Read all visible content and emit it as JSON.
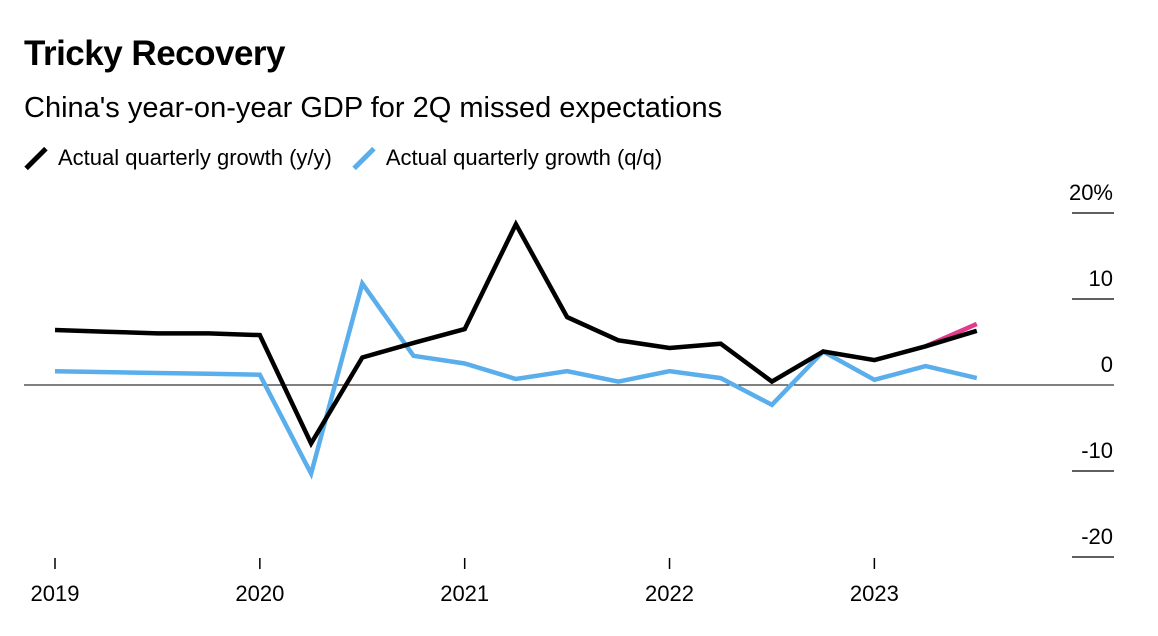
{
  "header": {
    "title": "Tricky Recovery",
    "subtitle": "China's year-on-year GDP for 2Q missed expectations"
  },
  "legend": [
    {
      "label": "Actual quarterly growth (y/y)",
      "color": "#000000"
    },
    {
      "label": "Actual quarterly growth (q/q)",
      "color": "#5aaeeb"
    }
  ],
  "colors": {
    "yy": "#000000",
    "qq": "#5aaeeb",
    "expectation": "#e23a8c"
  },
  "chart_data": {
    "type": "line",
    "x_axis_ticks": [
      {
        "label": "2019",
        "x": 2019.0
      },
      {
        "label": "2020",
        "x": 2020.0
      },
      {
        "label": "2021",
        "x": 2021.0
      },
      {
        "label": "2022",
        "x": 2022.0
      },
      {
        "label": "2023",
        "x": 2023.0
      }
    ],
    "y_axis_ticks": [
      {
        "label": "20%",
        "value": 20
      },
      {
        "label": "10",
        "value": 10
      },
      {
        "label": "0",
        "value": 0
      },
      {
        "label": "-10",
        "value": -10
      },
      {
        "label": "-20",
        "value": -20
      }
    ],
    "ylim": [
      -20,
      20
    ],
    "xlim": [
      2019.0,
      2023.75
    ],
    "series": [
      {
        "name": "Actual quarterly growth (y/y)",
        "key": "yy",
        "x": [
          2019.0,
          2019.25,
          2019.5,
          2019.75,
          2020.0,
          2020.25,
          2020.5,
          2020.75,
          2021.0,
          2021.25,
          2021.5,
          2021.75,
          2022.0,
          2022.25,
          2022.5,
          2022.75,
          2023.0,
          2023.25,
          2023.5
        ],
        "y": [
          6.4,
          6.2,
          6.0,
          6.0,
          5.8,
          -6.8,
          3.2,
          4.9,
          6.5,
          18.7,
          7.9,
          5.2,
          4.3,
          4.8,
          0.4,
          3.9,
          2.9,
          4.5,
          6.3
        ]
      },
      {
        "name": "Actual quarterly growth (q/q)",
        "key": "qq",
        "x": [
          2019.0,
          2019.25,
          2019.5,
          2019.75,
          2020.0,
          2020.25,
          2020.5,
          2020.75,
          2021.0,
          2021.25,
          2021.5,
          2021.75,
          2022.0,
          2022.25,
          2022.5,
          2022.75,
          2023.0,
          2023.25,
          2023.5
        ],
        "y": [
          1.6,
          1.5,
          1.4,
          1.3,
          1.2,
          -10.3,
          11.8,
          3.4,
          2.5,
          0.7,
          1.6,
          0.4,
          1.6,
          0.8,
          -2.3,
          3.9,
          0.6,
          2.2,
          0.8
        ]
      },
      {
        "key": "expectation",
        "x": [
          2023.25,
          2023.5
        ],
        "y": [
          4.5,
          7.1
        ]
      }
    ],
    "baseline": 0,
    "grid": false
  }
}
